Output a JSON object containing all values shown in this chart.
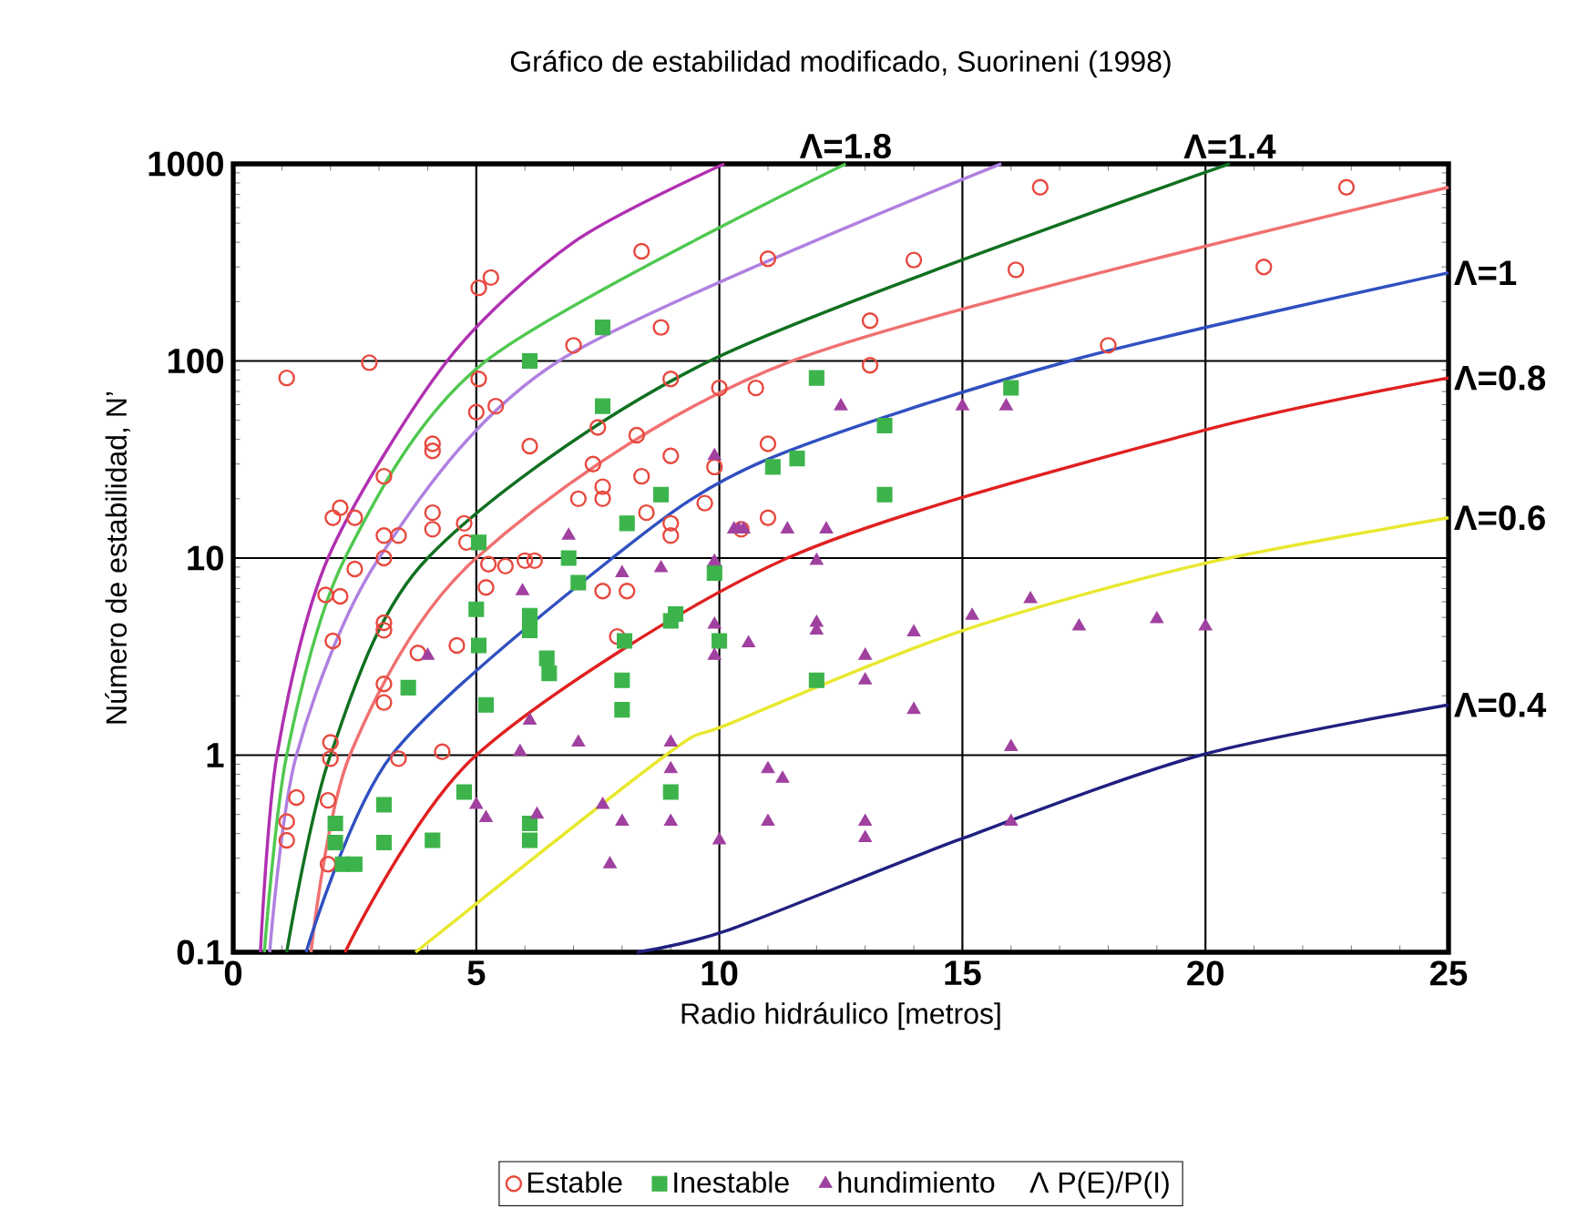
{
  "chart_data": {
    "type": "scatter",
    "title": "Gráfico de estabilidad modificado, Suorineni (1998)",
    "xlabel": "Radio hidráulico [metros]",
    "ylabel": "Número de estabilidad, N’",
    "xlim": [
      0,
      25
    ],
    "ylim": [
      0.1,
      1000
    ],
    "xticks": [
      0,
      5,
      10,
      15,
      20,
      25
    ],
    "yticks": [
      0.1,
      1,
      10,
      100,
      1000
    ],
    "log": "y",
    "grid": true,
    "legend": "bottom",
    "annotations": [
      "Λ  P(E)/P(I)"
    ],
    "series": [
      {
        "name": "Estable",
        "color": "#e8493f",
        "marker": "circle",
        "x": [
          1.1,
          2.8,
          5.05,
          5.3,
          8.4,
          8.8,
          7.0,
          9.0,
          5.05,
          10.0,
          10.75,
          5.4,
          5.0,
          7.5,
          8.3,
          9.0,
          6.1,
          4.1,
          4.1,
          7.4,
          7.6,
          3.1,
          9.9,
          8.4,
          7.1,
          7.6,
          8.5,
          9.0,
          2.2,
          2.05,
          2.5,
          4.1,
          3.1,
          3.4,
          4.75,
          4.1,
          4.8,
          9.0,
          9.7,
          10.45,
          16.6,
          22.9,
          11.0,
          14.0,
          16.1,
          21.2,
          13.1,
          13.1,
          18.0,
          11.0,
          11.0,
          1.9,
          2.2,
          2.5,
          3.1,
          2.05,
          3.1,
          3.1,
          3.8,
          4.6,
          3.1,
          3.1,
          2.0,
          2.0,
          3.4,
          4.3,
          1.3,
          1.1,
          1.1,
          1.95,
          1.95,
          5.2,
          5.25,
          5.6,
          6.0,
          6.2,
          7.6,
          8.1,
          7.9
        ],
        "values": [
          82,
          98,
          235,
          265,
          360,
          148,
          120,
          81,
          81,
          73,
          73,
          59,
          55,
          46,
          42,
          33,
          37,
          38,
          35,
          30,
          20,
          26,
          29,
          26,
          20,
          23,
          17,
          15,
          18,
          16,
          16,
          17,
          13,
          13,
          15,
          14,
          12,
          13,
          19,
          14,
          760,
          760,
          330,
          325,
          290,
          300,
          160,
          95,
          120,
          38,
          16,
          6.5,
          6.4,
          8.8,
          10,
          3.8,
          4.7,
          4.3,
          3.3,
          3.6,
          2.3,
          1.85,
          1.16,
          0.96,
          0.96,
          1.04,
          0.61,
          0.46,
          0.37,
          0.59,
          0.28,
          7.1,
          9.3,
          9.1,
          9.7,
          9.7,
          6.8,
          6.8,
          4.0
        ]
      },
      {
        "name": "Inestable",
        "color": "#3cb44b",
        "marker": "square",
        "x": [
          7.6,
          6.1,
          7.6,
          8.8,
          8.1,
          5.05,
          6.9,
          12.0,
          13.4,
          13.4,
          11.1,
          11.6,
          16.0,
          12.0,
          5.0,
          5.05,
          6.1,
          6.1,
          6.45,
          6.5,
          7.1,
          8.05,
          8.0,
          8.0,
          9.1,
          9.0,
          9.9,
          10.0,
          3.6,
          5.2,
          4.75,
          2.1,
          2.1,
          3.1,
          3.1,
          4.1,
          2.25,
          2.5,
          6.1,
          6.1,
          9.0
        ],
        "values": [
          148,
          100,
          59,
          21,
          15,
          12,
          10,
          82,
          47,
          21,
          29,
          32,
          73,
          2.4,
          5.5,
          3.6,
          5.1,
          4.3,
          3.1,
          2.6,
          7.5,
          3.8,
          2.4,
          1.7,
          5.2,
          4.8,
          8.4,
          3.8,
          2.2,
          1.8,
          0.65,
          0.45,
          0.36,
          0.56,
          0.36,
          0.37,
          0.28,
          0.28,
          0.45,
          0.37,
          0.65
        ]
      },
      {
        "name": "hundimiento",
        "color": "#a040a0",
        "marker": "triangle",
        "x": [
          12.5,
          15.0,
          15.9,
          10.3,
          10.5,
          11.4,
          12.2,
          12.0,
          10.6,
          12.0,
          12.0,
          13.0,
          13.0,
          14.0,
          14.0,
          15.2,
          16.4,
          17.4,
          19.0,
          20.0,
          16.0,
          11.0,
          11.3,
          11.0,
          13.0,
          13.0,
          16.0,
          4.0,
          5.95,
          8.0,
          8.8,
          9.9,
          9.9,
          9.9,
          6.1,
          5.9,
          7.1,
          9.0,
          9.0,
          5.0,
          5.2,
          6.25,
          7.6,
          8.0,
          9.0,
          7.75,
          10.0,
          9.9,
          6.9,
          10.4
        ],
        "values": [
          59,
          59,
          59,
          14,
          14,
          14,
          14,
          9.7,
          3.7,
          4.7,
          4.3,
          3.2,
          2.4,
          4.2,
          1.7,
          5.1,
          6.2,
          4.5,
          4.9,
          4.5,
          1.1,
          0.85,
          0.76,
          0.46,
          0.46,
          0.38,
          0.46,
          3.2,
          6.8,
          8.4,
          8.9,
          9.6,
          4.6,
          3.2,
          1.5,
          1.04,
          1.16,
          1.16,
          0.85,
          0.56,
          0.48,
          0.5,
          0.56,
          0.46,
          0.46,
          0.28,
          0.37,
          33,
          13,
          14
        ]
      },
      {
        "type": "line",
        "color": "#b030b0",
        "x": [
          0.56,
          0.9,
          1.95,
          4.4,
          7.0,
          10.1
        ],
        "values": [
          0.1,
          1,
          10,
          100,
          400,
          1000
        ]
      },
      {
        "type": "line",
        "name": "Λ=1.8",
        "color": "#50c850",
        "x": [
          0.64,
          1.1,
          2.3,
          5.2,
          12.6
        ],
        "values": [
          0.1,
          1,
          10,
          100,
          1000
        ]
      },
      {
        "type": "line",
        "color": "#b080e0",
        "x": [
          0.75,
          1.3,
          3.0,
          6.7,
          15.8
        ],
        "values": [
          0.1,
          1,
          10,
          100,
          1000
        ]
      },
      {
        "type": "line",
        "name": "Λ=1.4",
        "color": "#107020",
        "x": [
          1.1,
          2.0,
          4.0,
          9.8,
          20.5
        ],
        "values": [
          0.1,
          1,
          10,
          100,
          1000
        ]
      },
      {
        "type": "line",
        "color": "#f07070",
        "x": [
          1.6,
          2.4,
          5.0,
          11.5,
          25
        ],
        "values": [
          0.1,
          1,
          10,
          100,
          760
        ]
      },
      {
        "type": "line",
        "name": "Λ=1",
        "color": "#3050c0",
        "x": [
          1.5,
          3.26,
          7.8,
          10.9,
          17.2,
          25
        ],
        "values": [
          0.1,
          1,
          10,
          31,
          100,
          280
        ]
      },
      {
        "type": "line",
        "name": "Λ=0.8",
        "color": "#e02020",
        "x": [
          2.3,
          5.0,
          11.4,
          19.9,
          25
        ],
        "values": [
          0.1,
          1,
          10,
          44,
          82
        ]
      },
      {
        "type": "line",
        "name": "Λ=0.6",
        "color": "#e8e830",
        "x": [
          3.75,
          8.9,
          10.2,
          14.9,
          19.9,
          25
        ],
        "values": [
          0.1,
          1,
          1.44,
          4.2,
          9.3,
          16
        ]
      },
      {
        "type": "line",
        "name": "Λ=0.4",
        "color": "#202080",
        "x": [
          8.3,
          10.2,
          14.9,
          19.9,
          25
        ],
        "values": [
          0.1,
          0.13,
          0.37,
          1.0,
          1.8
        ]
      }
    ]
  }
}
